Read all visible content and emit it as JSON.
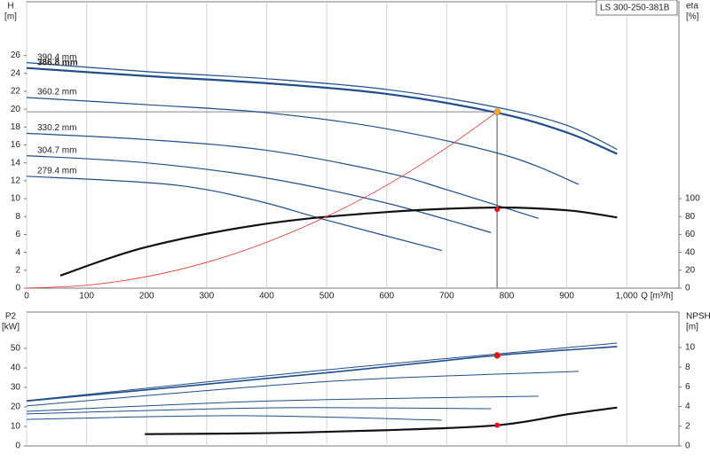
{
  "chart_data": [
    {
      "type": "line",
      "box_label": "LS 300-250-381B",
      "ylabel": [
        "H",
        "[m]"
      ],
      "y2label": [
        "eta",
        "[%]"
      ],
      "xlabel": "Q [m³/h]",
      "xlim": [
        0,
        1087
      ],
      "ylim": [
        0,
        32
      ],
      "y2lim": [
        0,
        320
      ],
      "xticks": [
        0,
        100,
        200,
        300,
        400,
        500,
        600,
        700,
        800,
        900,
        {
          "value": 1000,
          "label": "1,000"
        }
      ],
      "yticks": [
        0,
        2,
        4,
        6,
        8,
        10,
        12,
        14,
        16,
        18,
        20,
        22,
        24,
        26
      ],
      "y2ticks": [
        0,
        20,
        40,
        60,
        80,
        100
      ],
      "grid": "x",
      "series": [
        {
          "name": "390.4 mm",
          "color": "#1f4e8c",
          "width": 1.2,
          "x": [
            0,
            200,
            400,
            600,
            784,
            900,
            984
          ],
          "values": [
            25.2,
            24.2,
            23.4,
            22.2,
            20.2,
            18.2,
            15.5
          ]
        },
        {
          "name": "386.8 mm",
          "color": "#1f4e8c",
          "width": 2.2,
          "x": [
            0,
            200,
            400,
            600,
            784,
            900,
            984
          ],
          "values": [
            24.6,
            23.7,
            22.9,
            21.7,
            19.6,
            17.4,
            15.0
          ]
        },
        {
          "name": "360.2 mm",
          "color": "#1f4e8c",
          "width": 1.2,
          "x": [
            0,
            200,
            400,
            600,
            800,
            920
          ],
          "values": [
            21.3,
            20.5,
            19.6,
            17.8,
            14.8,
            11.6
          ]
        },
        {
          "name": "330.2 mm",
          "color": "#1f4e8c",
          "width": 1.2,
          "x": [
            0,
            200,
            400,
            600,
            700,
            853
          ],
          "values": [
            17.3,
            16.6,
            15.4,
            12.9,
            11.0,
            7.8
          ]
        },
        {
          "name": "304.7 mm",
          "color": "#1f4e8c",
          "width": 1.2,
          "x": [
            0,
            200,
            400,
            600,
            774
          ],
          "values": [
            14.8,
            14.0,
            12.3,
            9.5,
            6.2
          ]
        },
        {
          "name": "279.4 mm",
          "color": "#1f4e8c",
          "width": 1.2,
          "x": [
            0,
            200,
            300,
            400,
            500,
            692
          ],
          "values": [
            12.5,
            11.8,
            11.0,
            9.5,
            7.6,
            4.2
          ]
        },
        {
          "color": "#111111",
          "width": 2.2,
          "axis": "y2",
          "x": [
            56,
            200,
            400,
            600,
            780,
            900,
            984
          ],
          "values": [
            14,
            46,
            72,
            85,
            90,
            87,
            79
          ]
        },
        {
          "color": "#e8312a",
          "width": 0.8,
          "x": [
            0,
            100,
            200,
            300,
            400,
            500,
            600,
            700,
            784
          ],
          "values": [
            0,
            0.32,
            1.28,
            2.88,
            5.13,
            8.01,
            11.5,
            15.7,
            19.7
          ]
        }
      ],
      "duty_point": {
        "x": 784,
        "y": 19.7,
        "y2": 88,
        "y_color": "#f5a623",
        "y2_color": "#e8101a"
      }
    },
    {
      "type": "line",
      "ylabel": [
        "P2",
        "[kW]"
      ],
      "y2label": [
        "NPSH",
        "[m]"
      ],
      "xlim": [
        0,
        1087
      ],
      "ylim": [
        0,
        68.6
      ],
      "y2lim": [
        0,
        13.6
      ],
      "xticks": [
        0,
        100,
        200,
        300,
        400,
        500,
        600,
        700,
        800,
        900,
        1000
      ],
      "yticks": [
        0,
        10,
        20,
        30,
        40,
        50
      ],
      "y2ticks": [
        0,
        2,
        4,
        6,
        8,
        10
      ],
      "grid": "x",
      "series": [
        {
          "color": "#1f4e8c",
          "width": 1.0,
          "x": [
            0,
            500,
            984
          ],
          "values": [
            23.2,
            39.0,
            52.7
          ]
        },
        {
          "color": "#1f4e8c",
          "width": 1.6,
          "x": [
            0,
            500,
            784,
            984
          ],
          "values": [
            23.0,
            37.5,
            46.4,
            50.9
          ]
        },
        {
          "color": "#1f4e8c",
          "width": 1.0,
          "x": [
            0,
            500,
            920
          ],
          "values": [
            20.5,
            33.0,
            38.2
          ]
        },
        {
          "color": "#1f4e8c",
          "width": 1.0,
          "x": [
            0,
            400,
            853
          ],
          "values": [
            17.7,
            23.0,
            25.5
          ]
        },
        {
          "color": "#1f4e8c",
          "width": 1.0,
          "x": [
            0,
            400,
            774
          ],
          "values": [
            16.4,
            19.5,
            19.1
          ]
        },
        {
          "color": "#1f4e8c",
          "width": 1.0,
          "x": [
            0,
            350,
            692
          ],
          "values": [
            13.6,
            15.5,
            13.2
          ]
        },
        {
          "color": "#111111",
          "width": 2.2,
          "axis": "y2",
          "x": [
            197,
            400,
            600,
            784,
            900,
            984
          ],
          "values": [
            1.2,
            1.3,
            1.6,
            2.1,
            3.2,
            3.9
          ]
        }
      ],
      "duty_point": {
        "x": 784,
        "y": 46.4,
        "y2": 2.1,
        "y_color": "#e8101a",
        "y2_color": "#e8101a"
      }
    }
  ]
}
